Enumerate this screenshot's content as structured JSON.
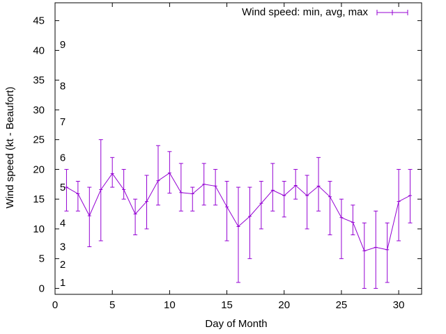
{
  "chart_data": {
    "type": "line",
    "xlabel": "Day of Month",
    "ylabel": "Wind speed (kt - Beaufort)",
    "xlim": [
      0,
      32
    ],
    "ylim": [
      -1,
      48
    ],
    "x_ticks": [
      0,
      5,
      10,
      15,
      20,
      25,
      30
    ],
    "y_ticks": [
      0,
      5,
      10,
      15,
      20,
      25,
      30,
      35,
      40,
      45
    ],
    "grid": false,
    "legend_position": "top-right",
    "line_color": "#9400d3",
    "beaufort_labels": [
      {
        "label": "1",
        "kt": 1
      },
      {
        "label": "2",
        "kt": 4
      },
      {
        "label": "3",
        "kt": 7
      },
      {
        "label": "4",
        "kt": 11
      },
      {
        "label": "5",
        "kt": 17
      },
      {
        "label": "6",
        "kt": 22
      },
      {
        "label": "7",
        "kt": 28
      },
      {
        "label": "8",
        "kt": 34
      },
      {
        "label": "9",
        "kt": 41
      }
    ],
    "series": [
      {
        "name": "Wind speed: min, avg, max",
        "x": [
          1,
          2,
          3,
          4,
          5,
          6,
          7,
          8,
          9,
          10,
          11,
          12,
          13,
          14,
          15,
          16,
          17,
          18,
          19,
          20,
          21,
          22,
          23,
          24,
          25,
          26,
          27,
          28,
          29,
          30,
          31
        ],
        "avg": [
          17,
          15.9,
          12.2,
          16.6,
          19.3,
          16.6,
          12.5,
          14.6,
          18.1,
          19.4,
          16.1,
          15.9,
          17.5,
          17.2,
          13.7,
          10.4,
          12.1,
          14.3,
          16.5,
          15.6,
          17.3,
          15.6,
          17.2,
          15.4,
          11.9,
          11.1,
          6.3,
          6.9,
          6.5,
          14.6,
          15.6
        ],
        "min": [
          13,
          13,
          7,
          8,
          17,
          15,
          9,
          10,
          14,
          16,
          13,
          13,
          14,
          14,
          8,
          1,
          5,
          10,
          13,
          12,
          15,
          10,
          13,
          9,
          5,
          9,
          0,
          0,
          1,
          8,
          11
        ],
        "max": [
          20,
          18,
          17,
          25,
          22,
          20,
          15,
          19,
          24,
          23,
          21,
          17,
          21,
          20,
          18,
          17,
          17,
          18,
          21,
          18,
          20,
          19,
          22,
          18,
          15,
          14,
          11,
          13,
          11,
          20,
          20
        ]
      }
    ]
  }
}
